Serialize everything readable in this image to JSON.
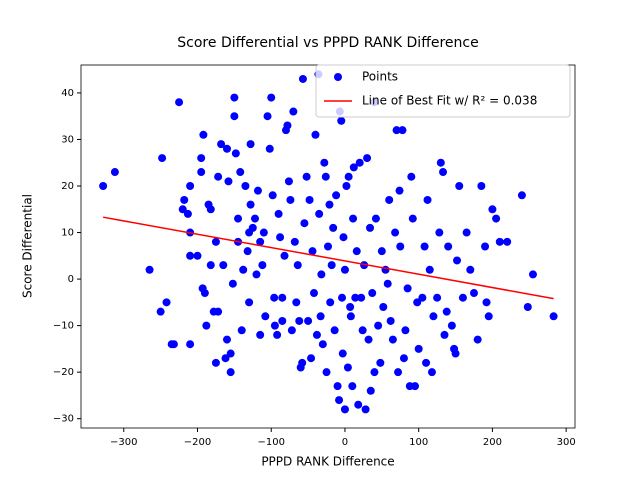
{
  "chart_data": {
    "type": "scatter",
    "title": "Score Differential vs PPPD RANK Difference",
    "x_label": "PPPD RANK Difference",
    "y_label": "Score Differential",
    "xlim": [
      -358,
      312
    ],
    "ylim": [
      -32,
      46
    ],
    "xticks": [
      {
        "value": -300,
        "label": "−300"
      },
      {
        "value": -200,
        "label": "−200"
      },
      {
        "value": -100,
        "label": "−100"
      },
      0,
      100,
      200,
      300
    ],
    "yticks": [
      {
        "value": -30,
        "label": "−30"
      },
      {
        "value": -20,
        "label": "−20"
      },
      {
        "value": -10,
        "label": "−10"
      },
      0,
      10,
      20,
      30,
      40
    ],
    "legend": "upper right",
    "series": [
      {
        "name": "Points",
        "mode": "markers",
        "color": "#0000ff",
        "x": [
          -328,
          -312,
          -265,
          -250,
          -248,
          -242,
          -235,
          -232,
          -225,
          -220,
          -218,
          -213,
          -210,
          -210,
          -210,
          -210,
          -200,
          -195,
          -192,
          -195,
          -193,
          -190,
          -188,
          -185,
          -182,
          -182,
          -178,
          -175,
          -175,
          -172,
          -172,
          -168,
          -165,
          -162,
          -160,
          -160,
          -158,
          -155,
          -155,
          -152,
          -150,
          -150,
          -148,
          -145,
          -145,
          -142,
          -140,
          -138,
          -135,
          -132,
          -130,
          -130,
          -128,
          -128,
          -125,
          -122,
          -120,
          -118,
          -115,
          -115,
          -112,
          -110,
          -108,
          -105,
          -102,
          -100,
          -98,
          -96,
          -95,
          -92,
          -90,
          -88,
          -85,
          -85,
          -82,
          -80,
          -78,
          -76,
          -74,
          -72,
          -70,
          -68,
          -66,
          -64,
          -62,
          -60,
          -58,
          -57,
          -55,
          -52,
          -50,
          -48,
          -46,
          -44,
          -42,
          -40,
          -38,
          -36,
          -35,
          -33,
          -32,
          -30,
          -28,
          -26,
          -25,
          -23,
          -21,
          -20,
          -18,
          -16,
          -14,
          -12,
          -10,
          -8,
          -7,
          -5,
          -4,
          -3,
          -2,
          0,
          0,
          2,
          4,
          5,
          7,
          8,
          10,
          11,
          12,
          14,
          16,
          18,
          20,
          22,
          24,
          26,
          28,
          30,
          32,
          34,
          35,
          37,
          40,
          40,
          42,
          45,
          48,
          50,
          52,
          55,
          58,
          60,
          62,
          65,
          68,
          70,
          72,
          74,
          75,
          78,
          80,
          82,
          85,
          88,
          90,
          92,
          95,
          98,
          100,
          105,
          108,
          110,
          112,
          115,
          118,
          120,
          125,
          128,
          130,
          133,
          135,
          138,
          140,
          145,
          148,
          150,
          152,
          155,
          160,
          165,
          170,
          175,
          180,
          185,
          190,
          192,
          195,
          200,
          205,
          210,
          220,
          240,
          248,
          255,
          283
        ],
        "values": [
          20,
          23,
          2,
          -7,
          26,
          -5,
          -14,
          -14,
          38,
          15,
          17,
          14,
          20,
          10,
          5,
          -14,
          5,
          26,
          31,
          23,
          -2,
          -3,
          -10,
          16,
          15,
          3,
          -7,
          -18,
          8,
          22,
          -7,
          29,
          3,
          -17,
          28,
          -13,
          21,
          -16,
          -20,
          -1,
          35,
          39,
          27,
          8,
          13,
          23,
          -11,
          2,
          20,
          6,
          10,
          -5,
          29,
          16,
          11,
          13,
          1,
          19,
          8,
          -12,
          3,
          10,
          -8,
          35,
          28,
          39,
          18,
          -4,
          -10,
          -12,
          14,
          9,
          -4,
          -9,
          5,
          32,
          33,
          21,
          17,
          -11,
          36,
          8,
          -5,
          3,
          -9,
          -19,
          -18,
          43,
          12,
          22,
          -9,
          17,
          -17,
          6,
          -3,
          31,
          -12,
          44,
          14,
          -8,
          1,
          -14,
          25,
          22,
          -20,
          7,
          16,
          -5,
          3,
          11,
          -11,
          18,
          -23,
          -26,
          36,
          34,
          -4,
          -16,
          9,
          -28,
          2,
          20,
          -19,
          22,
          -6,
          -8,
          -23,
          13,
          24,
          -4,
          6,
          -27,
          25,
          -4,
          -11,
          3,
          -28,
          26,
          -13,
          11,
          -24,
          -3,
          38,
          -20,
          13,
          -10,
          -18,
          6,
          -6,
          2,
          -1,
          17,
          -9,
          -13,
          10,
          32,
          -20,
          19,
          7,
          32,
          -17,
          -11,
          -2,
          -23,
          22,
          13,
          -23,
          -5,
          -15,
          -4,
          7,
          -18,
          17,
          2,
          -20,
          -8,
          -4,
          10,
          25,
          23,
          -12,
          -7,
          7,
          -10,
          -15,
          -16,
          4,
          20,
          -4,
          10,
          2,
          -3,
          -13,
          20,
          7,
          -5,
          -8,
          15,
          13,
          8,
          8,
          18,
          -6,
          1,
          -8
        ]
      },
      {
        "name": "Line of Best Fit w/ R² = 0.038",
        "mode": "line",
        "color": "#ff0000",
        "x": [
          -328,
          283
        ],
        "values": [
          13.3,
          -4.2
        ]
      }
    ]
  }
}
